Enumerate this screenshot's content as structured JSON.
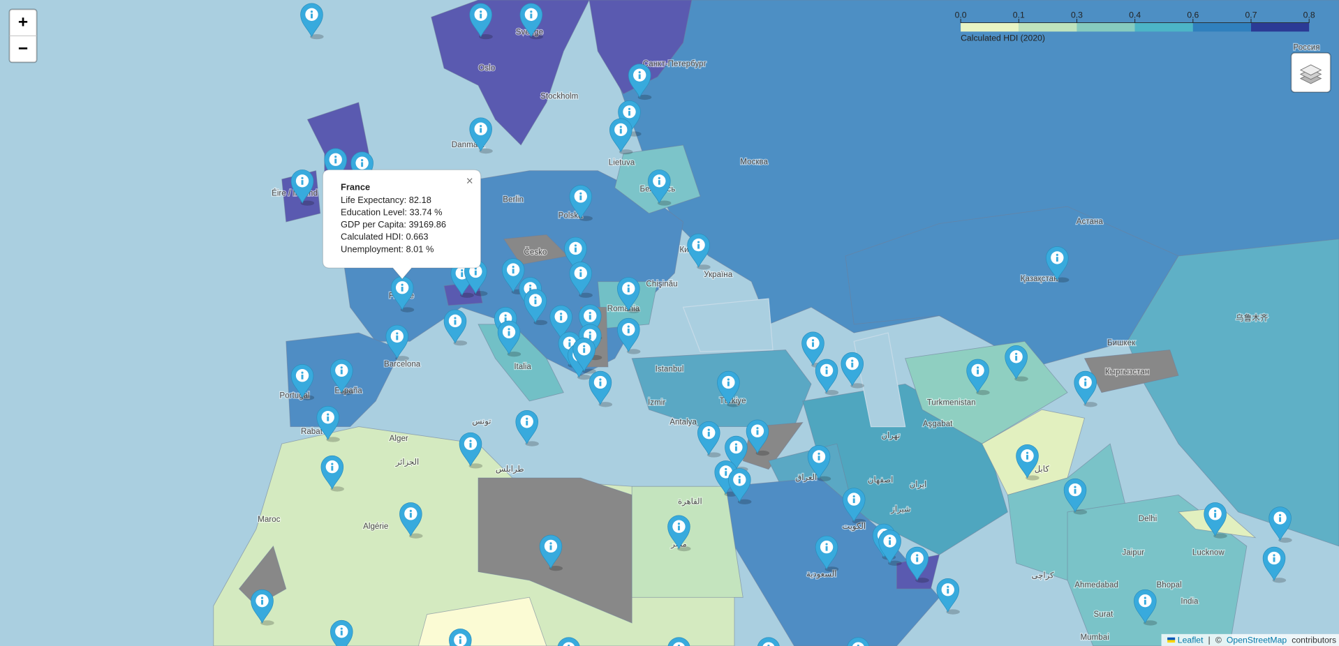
{
  "map": {
    "legend": {
      "title": "Calculated HDI (2020)",
      "ticks": [
        {
          "value": 0,
          "label": "0.0"
        },
        0.1,
        0.3,
        0.4,
        0.6,
        0.7,
        0.8
      ],
      "colors": [
        "#e8f4c4",
        "#bfe3bd",
        "#86cbbf",
        "#4cb5c7",
        "#3080bd",
        "#2b3a95"
      ]
    },
    "popup": {
      "title": "France",
      "close": "×",
      "lines": [
        "Life Expectancy: 82.18",
        "Education Level: 33.74 %",
        "GDP per Capita: 39169.86",
        "Calculated HDI: 0.663",
        "Unemployment: 8.01 %"
      ]
    },
    "controls": {
      "zoom_in": "+",
      "zoom_out": "−"
    },
    "attribution": [
      "Leaflet",
      "|",
      "©",
      "OpenStreetMap",
      "contributors"
    ],
    "labels": [
      "Oslo",
      "Stockholm",
      "Sverige",
      "Санкт-Петербург",
      "Danmark",
      "Lietuva",
      "Москва",
      "Berlin",
      "Polska",
      "Беларусь",
      "Česko",
      "Київ",
      "Україна",
      "Chişinău",
      "România",
      "Астана",
      "Қазақстан",
      "Россия",
      "Barcelona",
      "Italia",
      "España",
      "Portugal",
      "Istanbul",
      "İzmir",
      "Türkiye",
      "Antalya",
      "Turkmenistan",
      "Aşgabat",
      "Бишкек",
      "Кыргызстан",
      "乌鲁木齐",
      "Alger",
      "الجزائر",
      "طرابلس",
      "تونس",
      "Rabat",
      "Maroc",
      "Algérie",
      "القاهرة",
      "مصر",
      "العراق",
      "تهران",
      "اصفهان",
      "ایران",
      "شیراز",
      "الكويت",
      "السعودية",
      "كابل",
      "Delhi",
      "Jaipur",
      "Lucknow",
      "Ahmedabad",
      "Bhopal",
      "India",
      "Surat",
      "Mumbai",
      "کراچی",
      "Éire / Ireland",
      "France"
    ]
  }
}
